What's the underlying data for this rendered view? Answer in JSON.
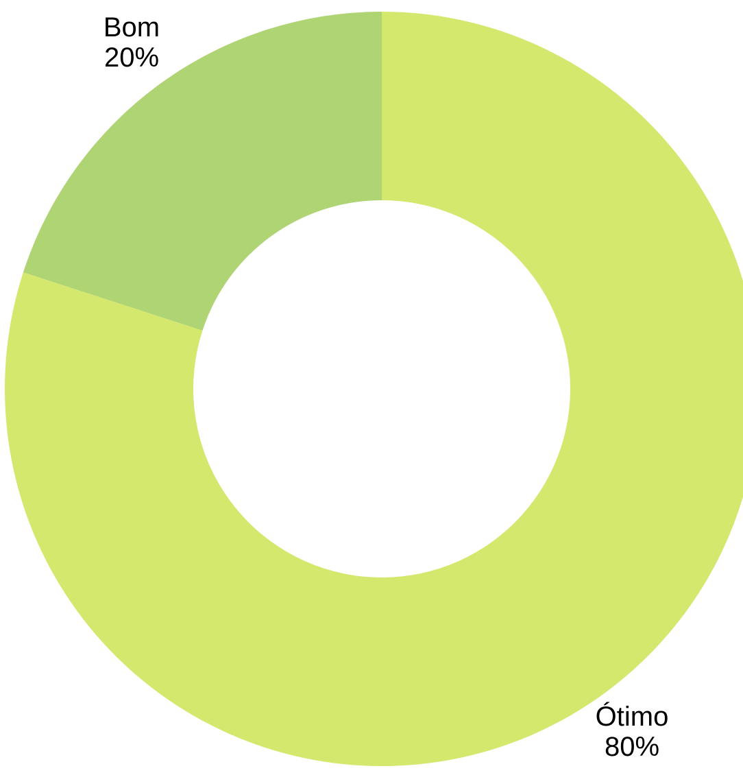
{
  "chart_data": {
    "type": "donut",
    "categories": [
      "Ótimo",
      "Bom"
    ],
    "values": [
      80,
      20
    ],
    "value_labels": [
      "80%",
      "20%"
    ],
    "colors": [
      "#d4e86e",
      "#afd474"
    ]
  }
}
